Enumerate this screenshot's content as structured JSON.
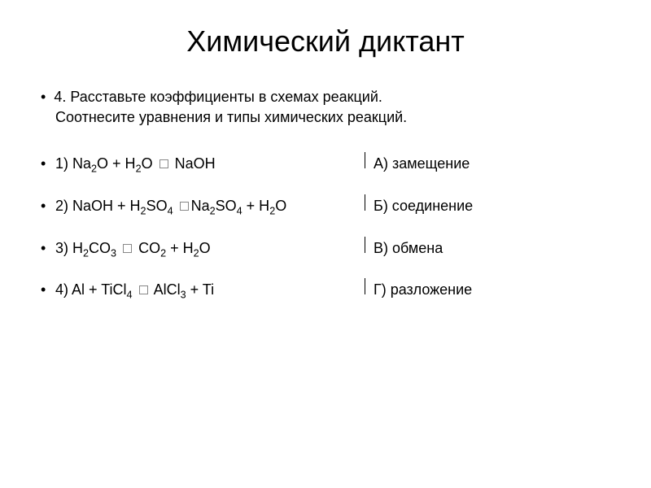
{
  "title": "Химический диктант",
  "instruction_line1": "4. Расставьте коэффициенты в схемах реакций.",
  "instruction_line2": "Соотнесите уравнения и типы химических реакций.",
  "rows": [
    {
      "num": "1) ",
      "parts": [
        "Na",
        "2",
        "O + H",
        "2",
        "O ",
        "",
        " NaOH"
      ],
      "answer": "А) замещение"
    },
    {
      "num": "2) ",
      "parts": [
        "NaOH + H",
        "2",
        "SO",
        "4",
        " ",
        "",
        "Na",
        "2",
        "SO",
        "4",
        " + H",
        "2",
        "O"
      ],
      "answer": "Б) соединение"
    },
    {
      "num": "3) ",
      "parts": [
        "H",
        "2",
        "CO",
        "3",
        " ",
        "",
        " CO",
        "2",
        " + H",
        "2",
        "O"
      ],
      "answer": "В) обмена"
    },
    {
      "num": "4) ",
      "parts": [
        "Al + TiCl",
        "4",
        " ",
        "",
        " AlCl",
        "3",
        " + Ti"
      ],
      "answer": "Г) разложение"
    }
  ],
  "style": {
    "title_fontsize": 36,
    "body_fontsize": 18,
    "sub_scale": 0.7,
    "text_color": "#000000",
    "background_color": "#ffffff",
    "divider_color": "#000000",
    "bullet_char": "•"
  }
}
